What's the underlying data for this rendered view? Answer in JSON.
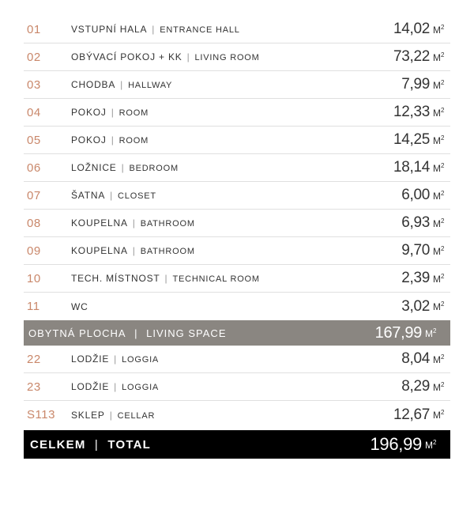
{
  "colors": {
    "accent": "#c9876a",
    "text": "#333333",
    "subtotal_bg": "#8a8681",
    "subtotal_text": "#ffffff",
    "total_bg": "#000000",
    "total_text": "#ffffff",
    "border": "#e0e0e0",
    "sep": "#999999"
  },
  "unit": "M²",
  "separator": "|",
  "rows": [
    {
      "num": "01",
      "label_cz": "VSTUPNÍ HALA",
      "label_en": "ENTRANCE HALL",
      "value": "14,02"
    },
    {
      "num": "02",
      "label_cz": "OBÝVACÍ POKOJ + KK",
      "label_en": "LIVING ROOM",
      "value": "73,22"
    },
    {
      "num": "03",
      "label_cz": "CHODBA",
      "label_en": "HALLWAY",
      "value": "7,99"
    },
    {
      "num": "04",
      "label_cz": "POKOJ",
      "label_en": "ROOM",
      "value": "12,33"
    },
    {
      "num": "05",
      "label_cz": "POKOJ",
      "label_en": "ROOM",
      "value": "14,25"
    },
    {
      "num": "06",
      "label_cz": "LOŽNICE",
      "label_en": "BEDROOM",
      "value": "18,14"
    },
    {
      "num": "07",
      "label_cz": "ŠATNA",
      "label_en": "CLOSET",
      "value": "6,00"
    },
    {
      "num": "08",
      "label_cz": "KOUPELNA",
      "label_en": "BATHROOM",
      "value": "6,93"
    },
    {
      "num": "09",
      "label_cz": "KOUPELNA",
      "label_en": "BATHROOM",
      "value": "9,70"
    },
    {
      "num": "10",
      "label_cz": "TECH. MÍSTNOST",
      "label_en": "TECHNICAL ROOM",
      "value": "2,39"
    },
    {
      "num": "11",
      "label_cz": "WC",
      "label_en": "",
      "value": "3,02"
    }
  ],
  "subtotal": {
    "label_cz": "OBYTNÁ PLOCHA",
    "label_en": "LIVING SPACE",
    "value": "167,99"
  },
  "rows2": [
    {
      "num": "22",
      "label_cz": "LODŽIE",
      "label_en": "LOGGIA",
      "value": "8,04"
    },
    {
      "num": "23",
      "label_cz": "LODŽIE",
      "label_en": "LOGGIA",
      "value": "8,29"
    },
    {
      "num": "S113",
      "label_cz": "SKLEP",
      "label_en": "CELLAR",
      "value": "12,67"
    }
  ],
  "total": {
    "label_cz": "CELKEM",
    "label_en": "TOTAL",
    "value": "196,99"
  }
}
